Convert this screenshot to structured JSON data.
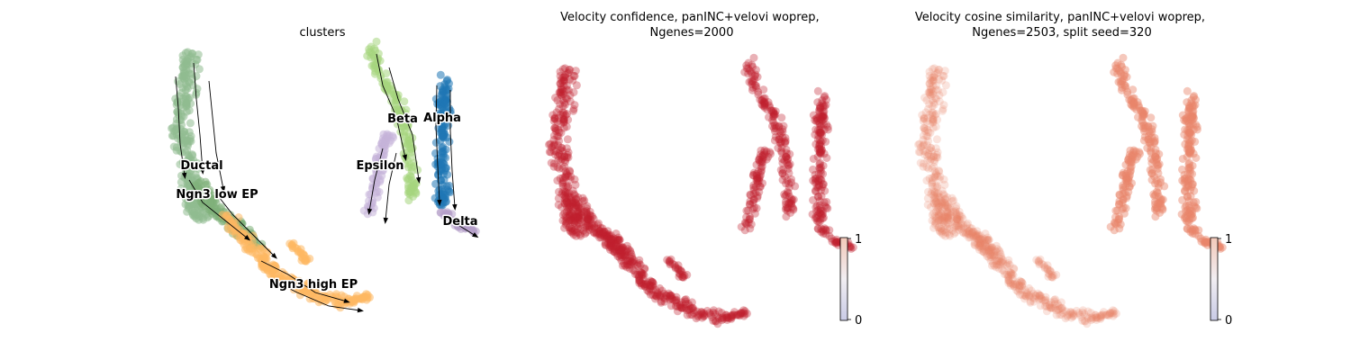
{
  "chart_data": [
    {
      "type": "scatter",
      "title": "clusters",
      "clusters": [
        {
          "name": "Ductal",
          "color": "#8fbc8f"
        },
        {
          "name": "Ngn3 low EP",
          "color": "#7fb07a"
        },
        {
          "name": "Ngn3 high EP",
          "color": "#fdb863"
        },
        {
          "name": "Beta",
          "color": "#a6d57d"
        },
        {
          "name": "Alpha",
          "color": "#1f77b4"
        },
        {
          "name": "Epsilon",
          "color": "#c5b3d9"
        },
        {
          "name": "Delta",
          "color": "#b59fc8"
        }
      ],
      "overlay": "velocity streamlines"
    },
    {
      "type": "scatter",
      "title": "Velocity confidence, panINC+velovi woprep,\nNgenes=2000",
      "colorbar": {
        "min": "0",
        "max": "1"
      },
      "point_color": "#c0202e"
    },
    {
      "type": "scatter",
      "title": "Velocity cosine similarity, panINC+velovi woprep,\nNgenes=2503, split seed=320",
      "colorbar": {
        "min": "0",
        "max": "1"
      },
      "point_color": "#e8866a"
    }
  ]
}
